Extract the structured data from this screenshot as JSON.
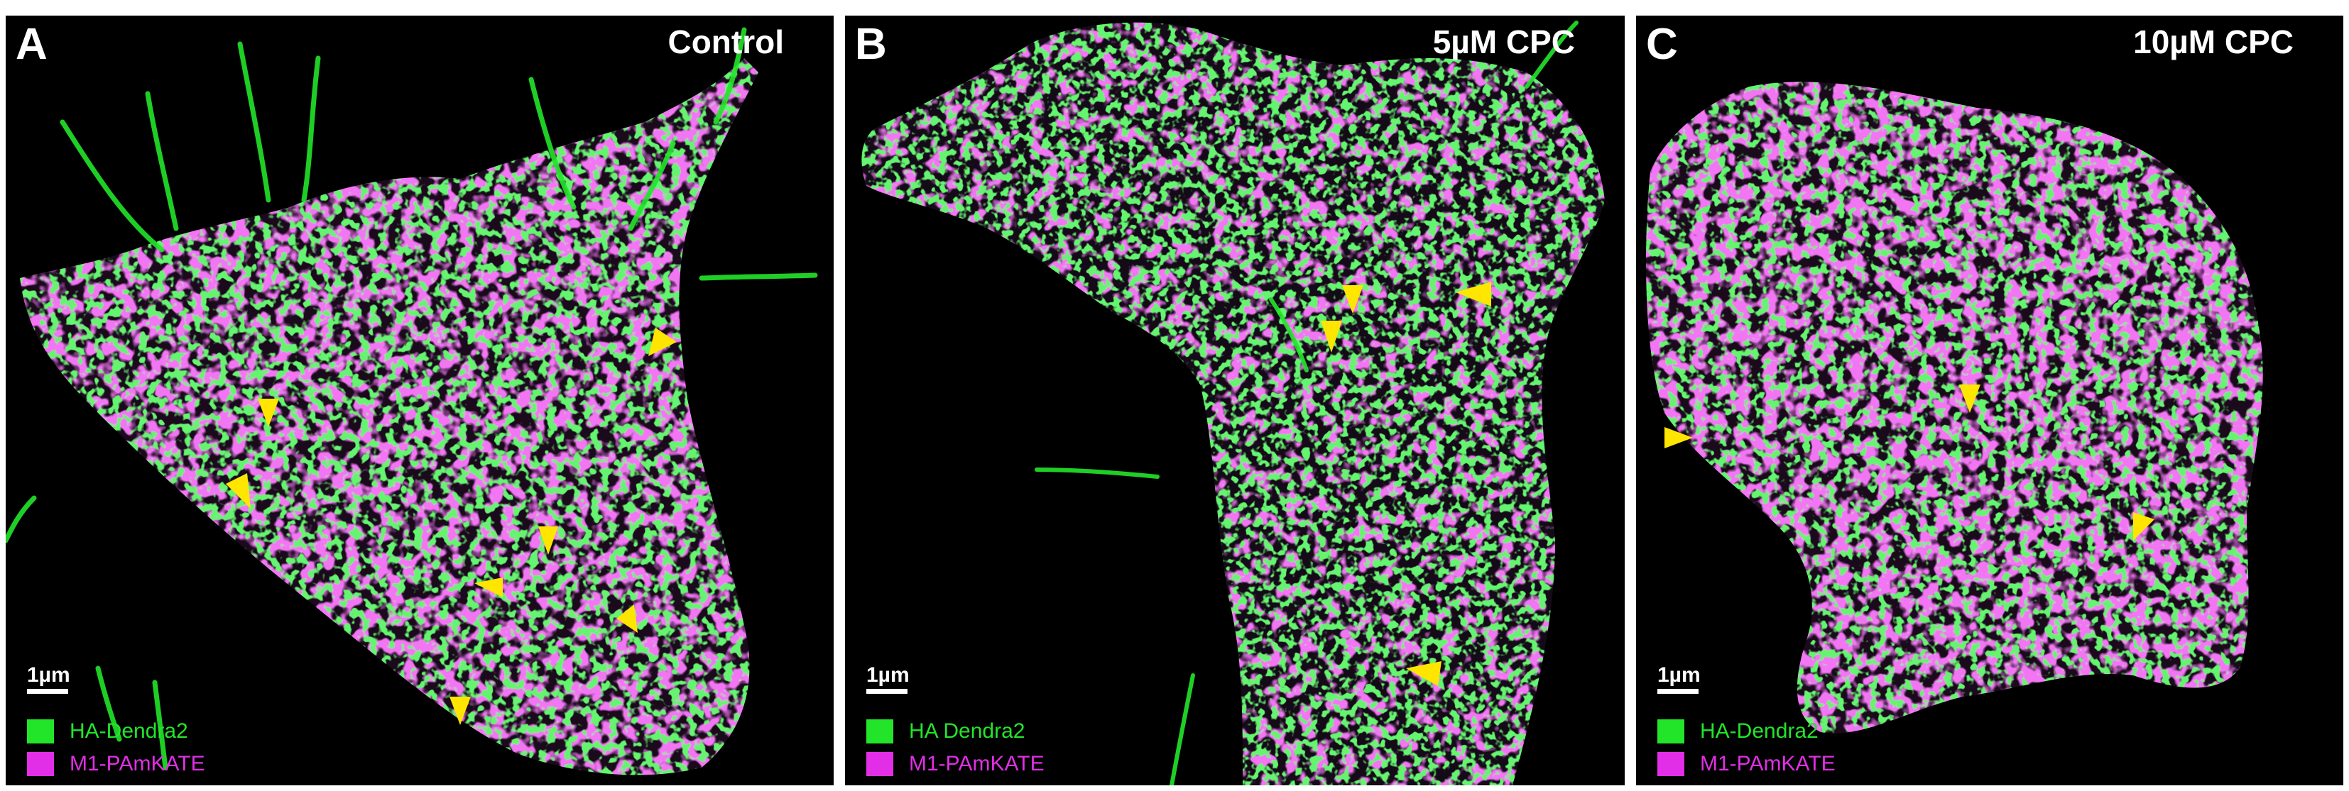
{
  "colors": {
    "green": "#22e52a",
    "magenta": "#e22ee6",
    "arrowhead": "#ffe600",
    "background": "#000000"
  },
  "panels": [
    {
      "letter": "A",
      "title": "Control",
      "scalebar": "1µm",
      "legend": [
        {
          "label": "HA-Dendra2",
          "color": "#22e52a"
        },
        {
          "label": "M1-PAmKATE",
          "color": "#e22ee6"
        }
      ]
    },
    {
      "letter": "B",
      "title": "5µM CPC",
      "scalebar": "1µm",
      "legend": [
        {
          "label": "HA Dendra2",
          "color": "#22e52a"
        },
        {
          "label": "M1-PAmKATE",
          "color": "#e22ee6"
        }
      ]
    },
    {
      "letter": "C",
      "title": "10µM CPC",
      "scalebar": "1µm",
      "legend": [
        {
          "label": "HA-Dendra2",
          "color": "#22e52a"
        },
        {
          "label": "M1-PAmKATE",
          "color": "#e22ee6"
        }
      ]
    }
  ]
}
